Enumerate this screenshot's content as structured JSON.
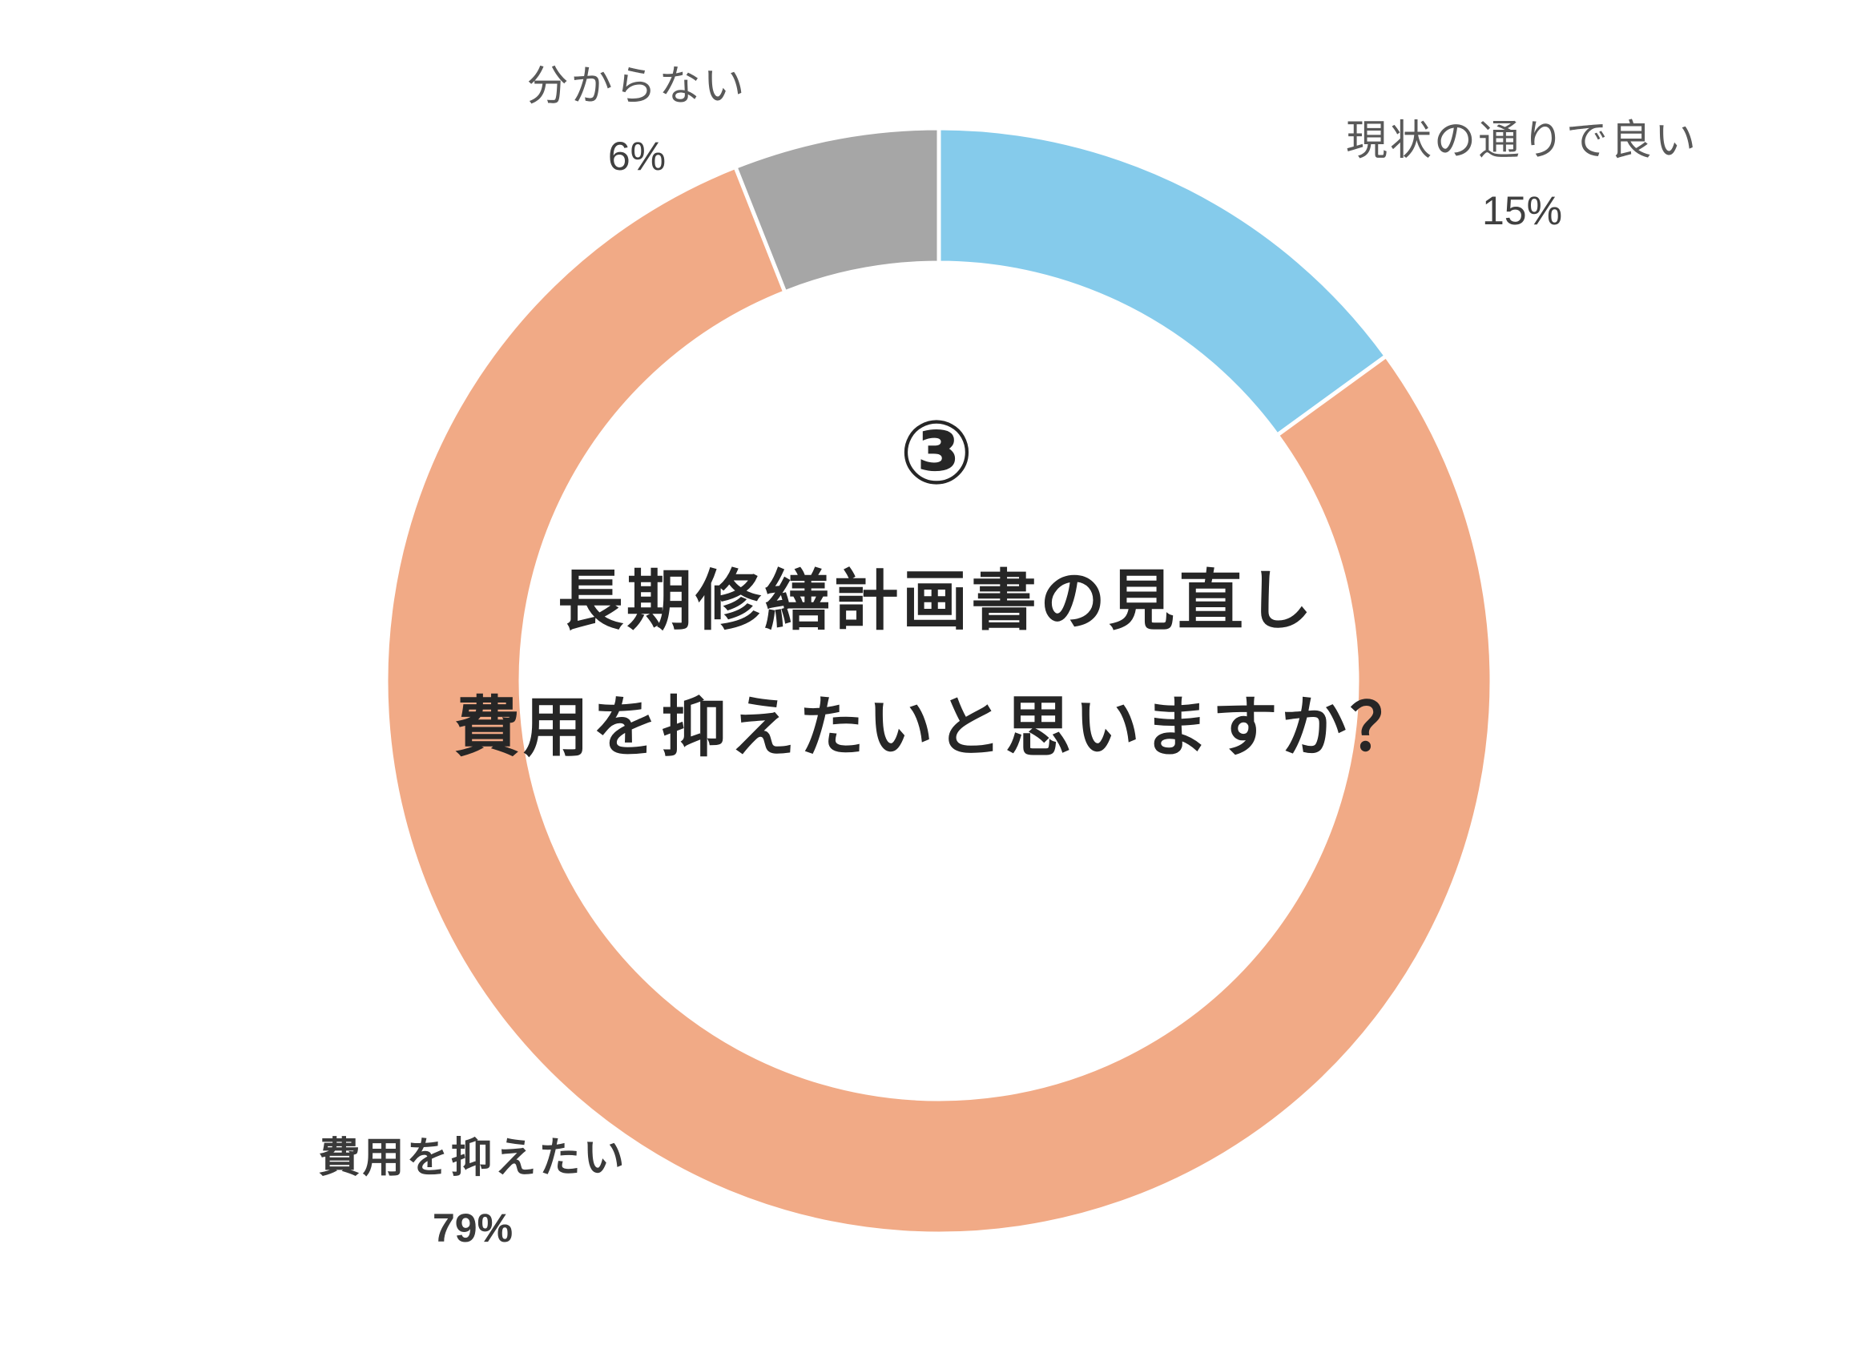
{
  "chart_data": {
    "type": "pie",
    "donut": true,
    "center": {
      "number": "③",
      "line1": "長期修繕計画書の見直し",
      "line2": "費用を抑えたいと思いますか？"
    },
    "slices": [
      {
        "label": "現状の通りで良い",
        "value": 15,
        "value_label": "15%",
        "color": "#85CBEB"
      },
      {
        "label": "費用を抑えたい",
        "value": 79,
        "value_label": "79%",
        "color": "#F1AA86"
      },
      {
        "label": "分からない",
        "value": 6,
        "value_label": "6%",
        "color": "#A6A6A6"
      }
    ]
  }
}
